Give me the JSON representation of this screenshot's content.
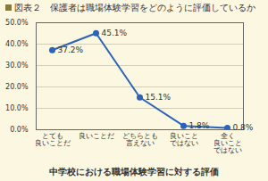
{
  "chart_data": {
    "type": "line",
    "title": "図表２　保護者は職場体験学習をどのように評価しているか",
    "subtitle": "中学校における職場体験学習に対する評価",
    "categories": [
      "とても\n良いことだ",
      "良いことだ",
      "どちらとも\n言えない",
      "良いこと\nではない",
      "全く\n良いこと\nではない"
    ],
    "values": [
      37.2,
      45.1,
      15.1,
      1.8,
      0.8
    ],
    "value_labels": [
      "37.2%",
      "45.1%",
      "15.1%",
      "1.8%",
      "0.8%"
    ],
    "color": "#2a63b8",
    "marker": "circle",
    "line_style": "solid",
    "data_labels": true,
    "grid": true,
    "ylim": [
      0,
      50
    ],
    "yticks": [
      {
        "value": 0,
        "label": "0.0%"
      },
      {
        "value": 10,
        "label": "10.0%"
      },
      {
        "value": 20,
        "label": "20.0%"
      },
      {
        "value": 30,
        "label": "30.0%"
      },
      {
        "value": 40,
        "label": "40.0%"
      },
      {
        "value": 50,
        "label": "50.0%"
      }
    ]
  }
}
